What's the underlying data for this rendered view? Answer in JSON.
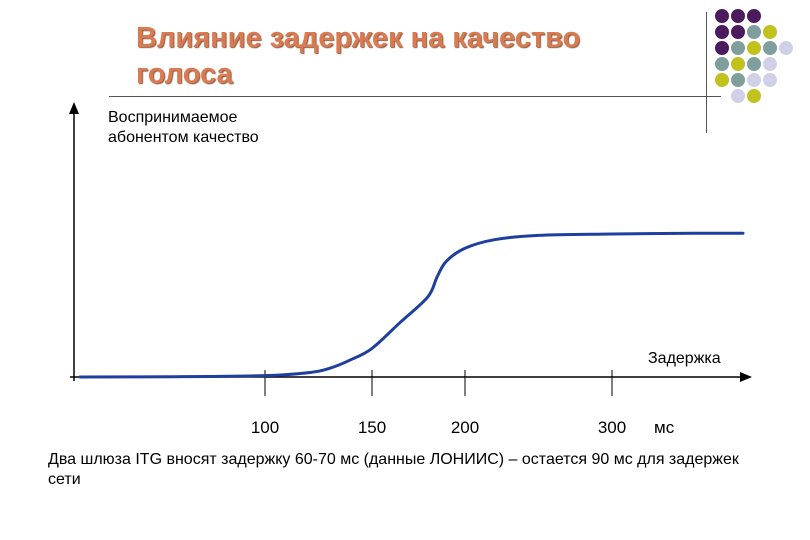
{
  "slide": {
    "title_lines": [
      "Влияние задержек на качество",
      "голоса"
    ],
    "note": "Два шлюза ITG вносят задержку 60-70 мс (данные ЛОНИИС) – остается 90 мс для задержек сети"
  },
  "palette": {
    "title": "#d97a50",
    "curve": "#1f3f9e",
    "axis": "#000000",
    "purple": "#4b1b5e",
    "teal": "#7f9e9e",
    "olive": "#c2c21f",
    "lavender": "#d0d0e6"
  },
  "decor_dots": [
    [
      "purple",
      "purple",
      "purple",
      "",
      ""
    ],
    [
      "purple",
      "purple",
      "teal",
      "olive",
      ""
    ],
    [
      "purple",
      "teal",
      "olive",
      "teal",
      "lavender"
    ],
    [
      "teal",
      "olive",
      "teal",
      "lavender",
      ""
    ],
    [
      "olive",
      "teal",
      "lavender",
      "lavender",
      ""
    ],
    [
      "",
      "lavender",
      "olive",
      "",
      ""
    ]
  ],
  "chart_data": {
    "type": "line",
    "ylabel_lines": [
      "Воспринимаемое",
      "абонентом качество"
    ],
    "xlabel": "Задержка",
    "x_unit": "мс",
    "x_ticks": [
      {
        "value": 100,
        "label": "100"
      },
      {
        "value": 150,
        "label": "150"
      },
      {
        "value": 200,
        "label": "200"
      },
      {
        "value": 300,
        "label": "300"
      }
    ],
    "series": [
      {
        "x": [
          0,
          50,
          100,
          120,
          130,
          140,
          150,
          165,
          180,
          185,
          190,
          200,
          220,
          250,
          300,
          350,
          380
        ],
        "y": [
          0,
          0.2,
          1,
          3,
          6,
          12,
          20,
          38,
          56,
          70,
          81,
          90,
          96,
          99,
          100,
          100.5,
          100.5
        ]
      }
    ],
    "ylim": [
      0,
      105
    ],
    "grid": false
  }
}
